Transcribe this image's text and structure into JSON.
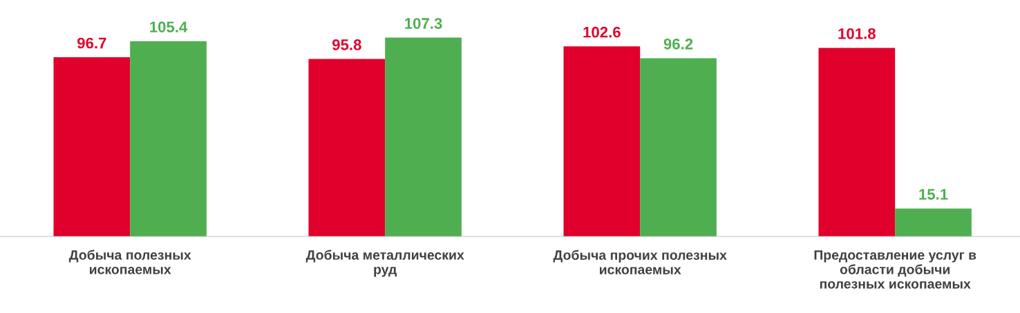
{
  "chart_data": {
    "type": "bar",
    "categories": [
      "Добыча полезных\nископаемых",
      "Добыча металлических\nруд",
      "Добыча прочих полезных\nископаемых",
      "Предоставление услуг в\nобласти добычи\nполезных ископаемых"
    ],
    "series": [
      {
        "color": "#e0002b",
        "values": [
          96.7,
          95.8,
          102.6,
          101.8
        ]
      },
      {
        "color": "#4fae50",
        "values": [
          105.4,
          107.3,
          96.2,
          15.1
        ]
      }
    ],
    "data_labels": true,
    "grid": false,
    "legend": false,
    "tick_labels": "x"
  }
}
